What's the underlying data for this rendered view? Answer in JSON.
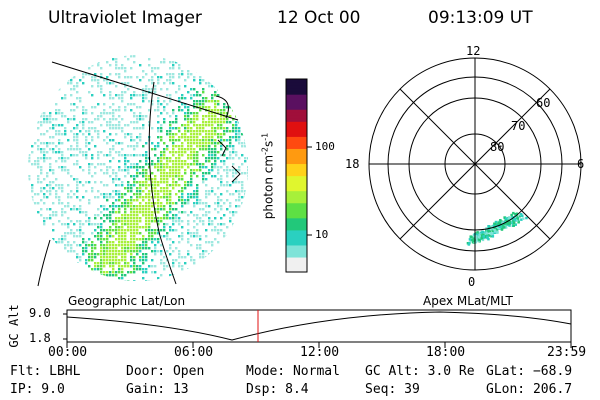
{
  "header": {
    "instrument": "Ultraviolet Imager",
    "date": "12 Oct 00",
    "time": "09:13:09 UT"
  },
  "colorbar": {
    "unit": "photon cm",
    "unit_exp1": "-2",
    "unit_mid": "s",
    "unit_exp2": "-1",
    "ticks": [
      "100",
      "10"
    ],
    "scale": "log",
    "colors": [
      "#f0f0f0",
      "#7fe3d8",
      "#2ad0c0",
      "#22c87a",
      "#5ee044",
      "#a7f03a",
      "#e0f62e",
      "#ffd21a",
      "#ff9a10",
      "#ff4a10",
      "#e01010",
      "#a00f3a",
      "#5a1060",
      "#1a0b3a"
    ]
  },
  "polar_plot": {
    "clock_labels": [
      "12",
      "18",
      "6",
      "0"
    ],
    "lat_labels": [
      "60",
      "70",
      "80"
    ]
  },
  "altitude_strip": {
    "ylabel": "GC Alt",
    "yticks": [
      "9.0",
      "1.8"
    ],
    "left_title": "Geographic Lat/Lon",
    "right_title": "Apex MLat/MLT",
    "xticks": [
      "00:00",
      "06:00",
      "12:00",
      "18:00",
      "23:59"
    ],
    "marker_color": "#e01010"
  },
  "footer": {
    "rows": [
      [
        "Flt: LBHL",
        "Door: Open",
        "Mode: Normal",
        "GC Alt: 3.0 Re",
        "GLat: −68.9"
      ],
      [
        "IP:  9.0",
        "Gain: 13",
        "Dsp:    8.4",
        "Seq: 39",
        "GLon: 206.7"
      ]
    ]
  }
}
